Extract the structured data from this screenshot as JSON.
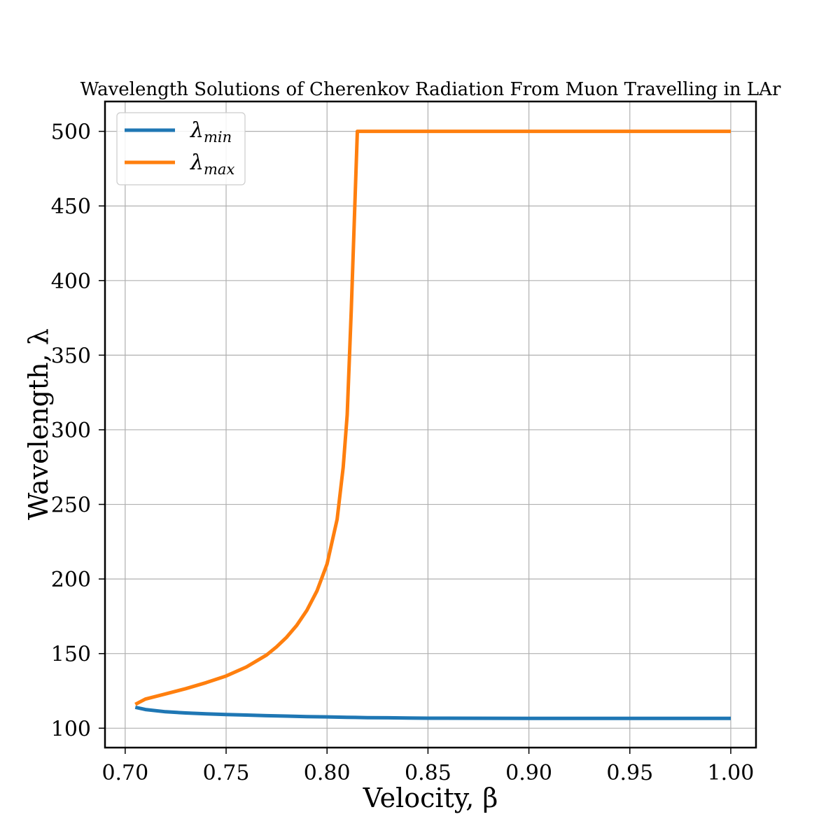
{
  "chart_data": {
    "type": "line",
    "title": "Wavelength Solutions of Cherenkov Radiation From Muon Travelling in LAr",
    "xlabel": "Velocity, β",
    "ylabel": "Wavelength, λ",
    "xlim": [
      0.69,
      1.0125
    ],
    "ylim": [
      87,
      520
    ],
    "xticks": [
      0.7,
      0.75,
      0.8,
      0.85,
      0.9,
      0.95,
      1.0
    ],
    "xtick_labels": [
      "0.70",
      "0.75",
      "0.80",
      "0.85",
      "0.90",
      "0.95",
      "1.00"
    ],
    "yticks": [
      100,
      150,
      200,
      250,
      300,
      350,
      400,
      450,
      500
    ],
    "ytick_labels": [
      "100",
      "150",
      "200",
      "250",
      "300",
      "350",
      "400",
      "450",
      "500"
    ],
    "grid": true,
    "legend_position": "top-left",
    "series": [
      {
        "name": "λ",
        "subscript": "min",
        "color": "#1f77b4",
        "x": [
          0.705,
          0.71,
          0.72,
          0.73,
          0.74,
          0.75,
          0.76,
          0.77,
          0.78,
          0.79,
          0.8,
          0.81,
          0.82,
          0.83,
          0.84,
          0.85,
          0.9,
          0.95,
          1.0
        ],
        "y": [
          114,
          112.5,
          111,
          110.2,
          109.6,
          109.2,
          108.8,
          108.4,
          108.1,
          107.8,
          107.6,
          107.3,
          107.1,
          107.0,
          106.8,
          106.7,
          106.6,
          106.6,
          106.6
        ]
      },
      {
        "name": "λ",
        "subscript": "max",
        "color": "#ff7f0e",
        "x": [
          0.705,
          0.71,
          0.72,
          0.73,
          0.74,
          0.75,
          0.76,
          0.77,
          0.775,
          0.78,
          0.785,
          0.79,
          0.795,
          0.8,
          0.805,
          0.808,
          0.81,
          0.812,
          0.815,
          0.83,
          0.85,
          0.9,
          0.95,
          1.0
        ],
        "y": [
          116,
          119.5,
          123,
          126.5,
          130.5,
          135,
          141,
          149,
          154.5,
          161,
          169,
          179,
          192,
          210,
          240,
          275,
          310,
          380,
          500,
          500,
          500,
          500,
          500,
          500
        ]
      }
    ]
  }
}
